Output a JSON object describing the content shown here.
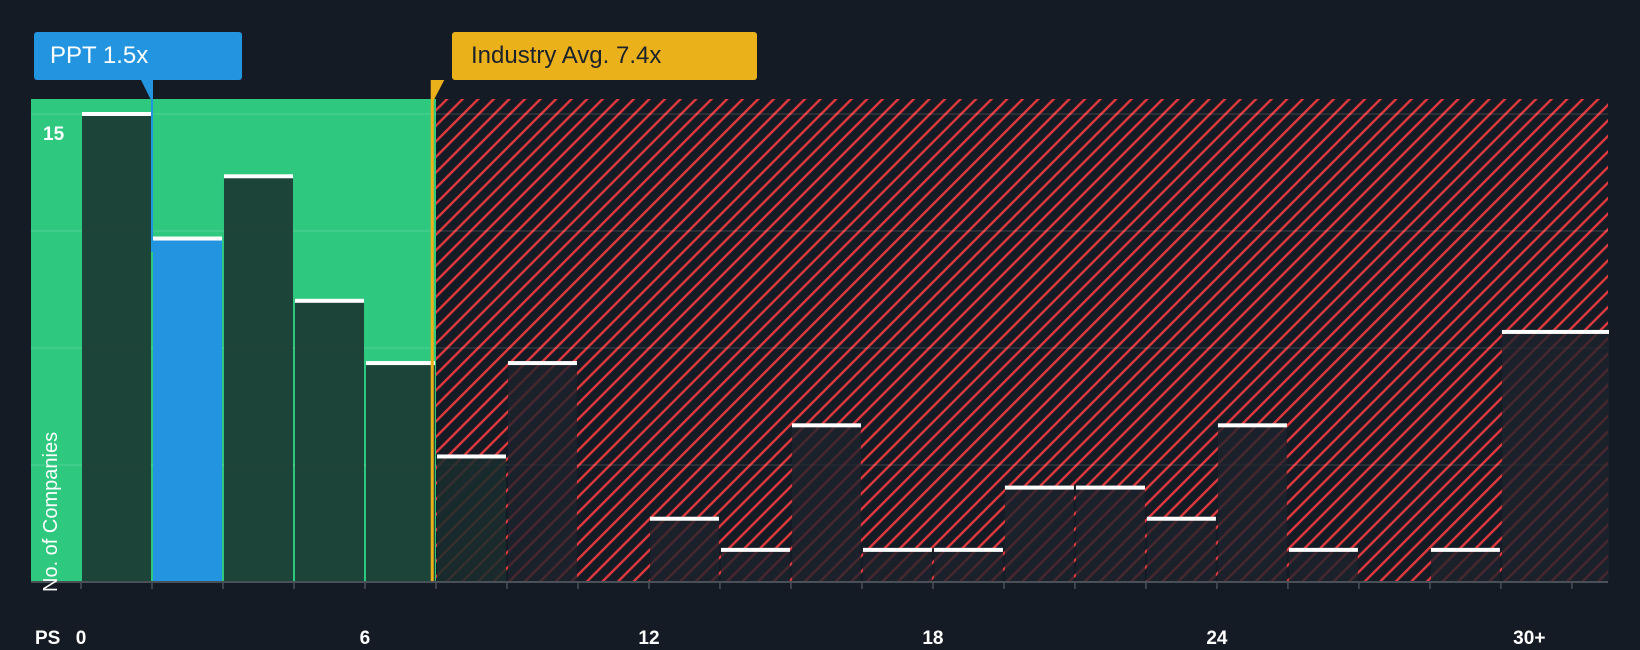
{
  "header": {
    "company_label": "PPT 1.5x",
    "industry_label": "Industry Avg. 7.4x"
  },
  "axis": {
    "y_label": "No. of Companies",
    "y_tick": "15",
    "x_prefix": "PS",
    "x_ticks": [
      "0",
      "6",
      "12",
      "18",
      "24",
      "30+"
    ]
  },
  "colors": {
    "background": "#151b24",
    "undervalued_zone": "#2ec87f",
    "overvalued_hatch": "#e0393e",
    "company_bar": "#2394df",
    "industry_line": "#ebb11a",
    "bar_dark": "#1f4a40",
    "bar_top": "#ffffff"
  },
  "chart_data": {
    "type": "bar",
    "title": "",
    "xlabel": "PS",
    "ylabel": "No. of Companies",
    "categories": [
      "0-1.5",
      "1.5-3",
      "3-4.5",
      "4.5-6",
      "6-7.5",
      "7.5-9",
      "9-10.5",
      "10.5-12",
      "12-13.5",
      "13.5-15",
      "15-16.5",
      "16.5-18",
      "18-19.5",
      "19.5-21",
      "21-22.5",
      "22.5-24",
      "24-25.5",
      "25.5-27",
      "27-28.5",
      "28.5-30",
      "30+"
    ],
    "values": [
      15,
      11,
      13,
      9,
      7,
      4,
      7,
      0,
      2,
      1,
      5,
      1,
      1,
      3,
      3,
      2,
      5,
      1,
      0,
      1,
      8
    ],
    "highlight_bin": "1.5-3",
    "company_value": 1.5,
    "industry_avg": 7.4,
    "ylim": [
      0,
      15
    ],
    "xlim": [
      0,
      31.5
    ],
    "grid": true,
    "legend": "none"
  }
}
